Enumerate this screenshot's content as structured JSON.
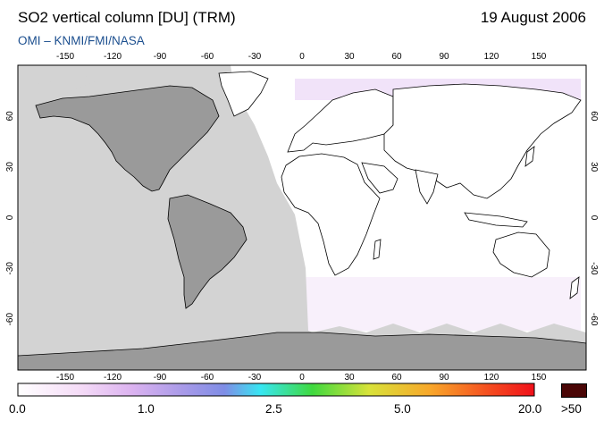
{
  "header": {
    "title": "SO2 vertical column [DU] (TRM)",
    "date": "19 August 2006",
    "credit": "OMI  –  KNMI/FMI/NASA"
  },
  "map": {
    "projection": "equirectangular",
    "lon_range": [
      -180,
      180
    ],
    "lat_range": [
      -90,
      90
    ],
    "lon_ticks": [
      "-150",
      "-120",
      "-90",
      "-60",
      "-30",
      "0",
      "30",
      "60",
      "90",
      "120",
      "150"
    ],
    "lat_ticks_left": [
      "60",
      "30",
      "0",
      "-30",
      "-60"
    ],
    "lat_ticks_right": [
      "60",
      "30",
      "0",
      "-30",
      "-60"
    ],
    "colors": {
      "night": "#d3d3d3",
      "land_in_night": "#9a9a9a",
      "ocean_day": "#ffffff",
      "coast": "#000000",
      "so2_low": "#e9d6f5"
    }
  },
  "colorbar": {
    "labels": [
      "0.0",
      "1.0",
      "2.5",
      "5.0",
      "20.0",
      ">50"
    ],
    "stops": [
      "#ffffff",
      "#f3d2f6",
      "#cfa6ee",
      "#8c8ce8",
      "#38e6f2",
      "#4bd84b",
      "#e8e03a",
      "#f79a2a",
      "#f0201e"
    ],
    "overflow_color": "#4a0606"
  }
}
